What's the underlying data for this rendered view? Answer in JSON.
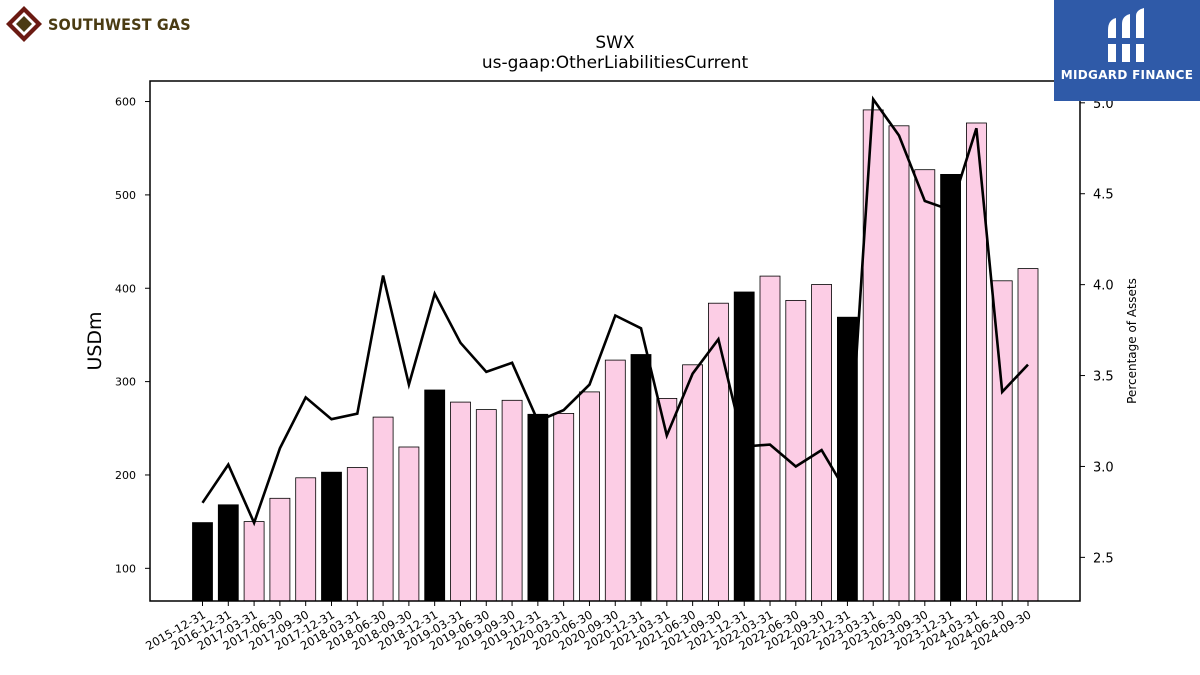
{
  "brand": {
    "left_name": "SOUTHWEST GAS",
    "right_name": "MIDGARD FINANCE",
    "left_colors": [
      "#6b1a12",
      "#4a3b12"
    ],
    "right_bg": "#2f5aa8"
  },
  "chart_data": {
    "type": "bar",
    "title": "SWX",
    "subtitle": "us-gaap:OtherLiabilitiesCurrent",
    "ylabel": "USDm",
    "y2label": "Percentage of Assets",
    "ylim": [
      65,
      622
    ],
    "y2lim": [
      2.26,
      5.12
    ],
    "yticks": [
      100,
      200,
      300,
      400,
      500,
      600
    ],
    "y2ticks": [
      2.5,
      3.0,
      3.5,
      4.0,
      4.5,
      5.0
    ],
    "y2tick_labels": [
      "2.5",
      "3.0",
      "3.5",
      "4.0",
      "4.5",
      "5.0"
    ],
    "colors": {
      "annual": "#000000",
      "quarter": "#fccde5",
      "line": "#000000"
    },
    "categories": [
      "2015-12-31",
      "2016-12-31",
      "2017-03-31",
      "2017-06-30",
      "2017-09-30",
      "2017-12-31",
      "2018-03-31",
      "2018-06-30",
      "2018-09-30",
      "2018-12-31",
      "2019-03-31",
      "2019-06-30",
      "2019-09-30",
      "2019-12-31",
      "2020-03-31",
      "2020-06-30",
      "2020-09-30",
      "2020-12-31",
      "2021-03-31",
      "2021-06-30",
      "2021-09-30",
      "2021-12-31",
      "2022-03-31",
      "2022-06-30",
      "2022-09-30",
      "2022-12-31",
      "2023-03-31",
      "2023-06-30",
      "2023-09-30",
      "2023-12-31",
      "2024-03-31",
      "2024-06-30",
      "2024-09-30"
    ],
    "annual": [
      true,
      true,
      false,
      false,
      false,
      true,
      false,
      false,
      false,
      true,
      false,
      false,
      false,
      true,
      false,
      false,
      false,
      true,
      false,
      false,
      false,
      true,
      false,
      false,
      false,
      true,
      false,
      false,
      false,
      true,
      false,
      false,
      false
    ],
    "series": [
      {
        "type": "bar",
        "values": [
          149,
          168,
          150,
          175,
          197,
          203,
          208,
          262,
          230,
          291,
          278,
          270,
          280,
          265,
          266,
          289,
          323,
          329,
          282,
          318,
          384,
          396,
          413,
          387,
          404,
          369,
          591,
          574,
          527,
          522,
          577,
          408,
          421
        ]
      },
      {
        "type": "line",
        "axis": "right",
        "values": [
          2.8,
          3.01,
          2.69,
          3.1,
          3.38,
          3.26,
          3.29,
          4.05,
          3.45,
          3.95,
          3.68,
          3.52,
          3.57,
          3.25,
          3.31,
          3.45,
          3.83,
          3.76,
          3.17,
          3.51,
          3.7,
          3.11,
          3.12,
          3.0,
          3.09,
          2.85,
          5.02,
          4.82,
          4.46,
          4.41,
          4.86,
          3.41,
          3.56
        ]
      }
    ]
  }
}
